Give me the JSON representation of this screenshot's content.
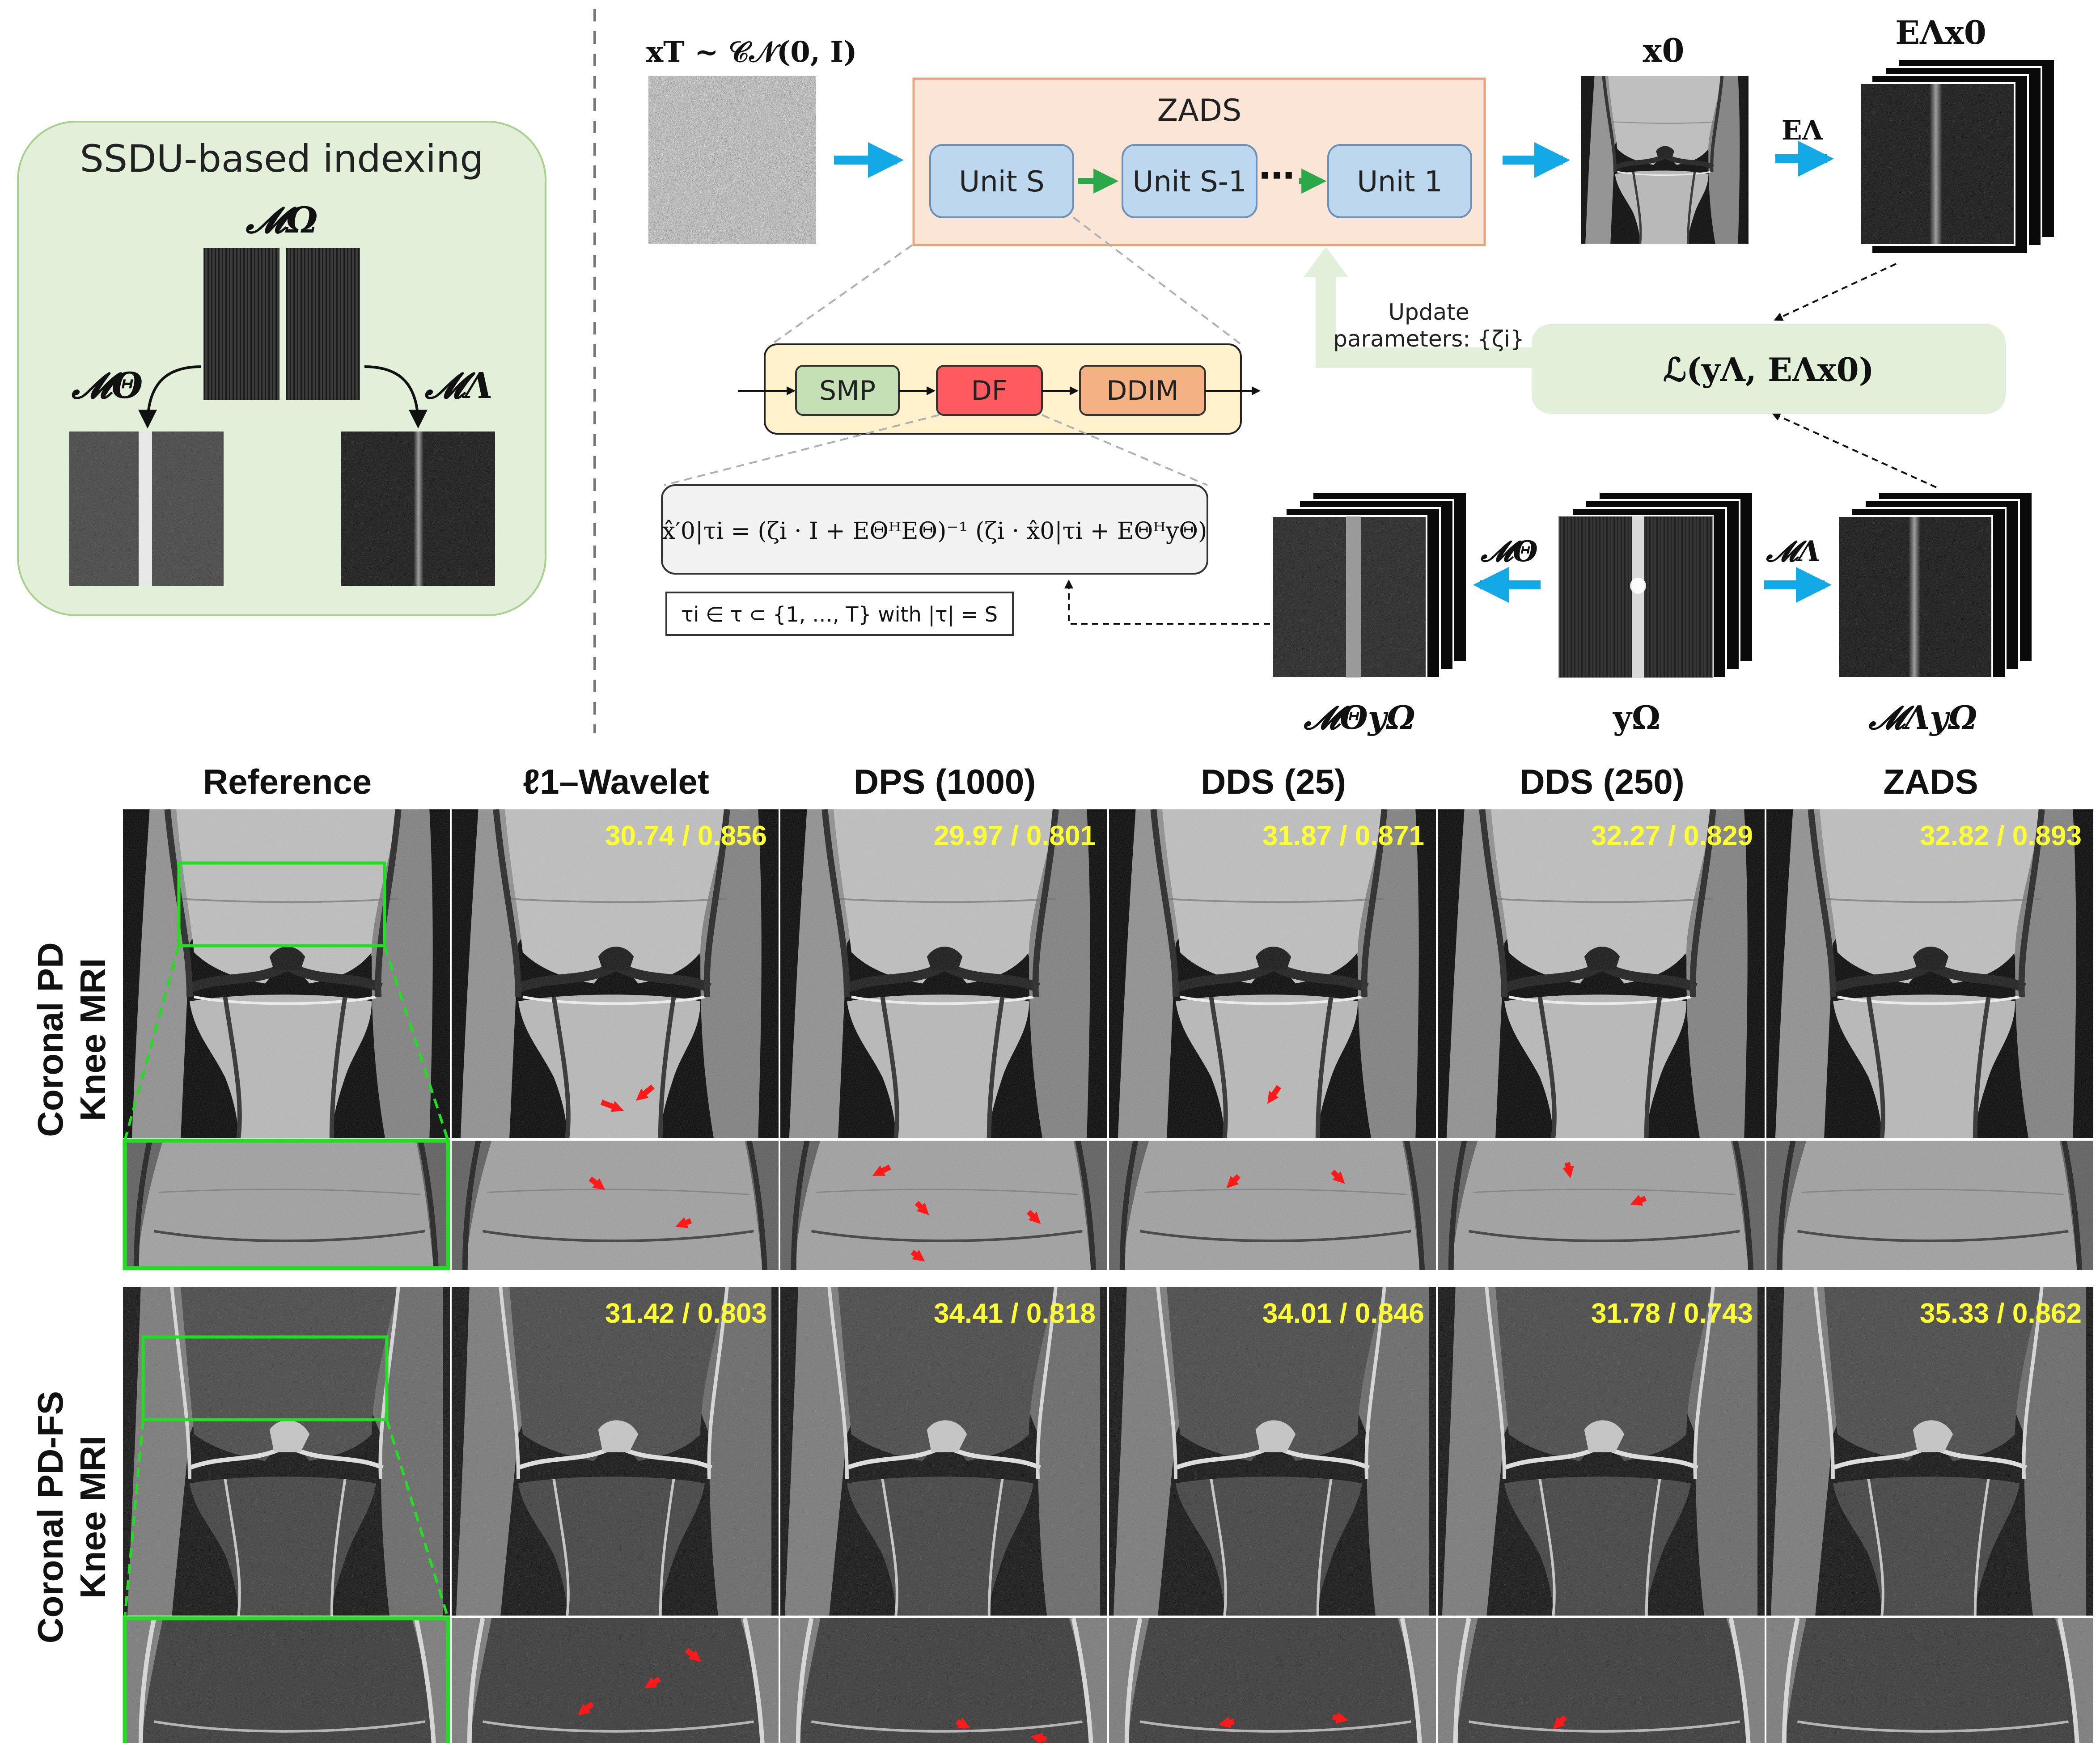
{
  "ssdu": {
    "title": "SSDU-based indexing",
    "mask_omega": "𝓜Ω",
    "mask_theta": "𝓜Θ",
    "mask_lambda": "𝓜Λ"
  },
  "pipeline": {
    "noise_label": "xT ~ 𝒞𝒩(0, I)",
    "zads_title": "ZADS",
    "units": [
      "Unit S",
      "Unit S-1",
      "Unit 1"
    ],
    "ellipsis": "⋯",
    "x0_label": "x0",
    "e_lambda_label": "EΛ",
    "e_lambda_x0_label": "EΛx0",
    "loss_label": "ℒ(yΛ, EΛx0)",
    "update_line1": "Update",
    "update_line2": "parameters: {ζi}",
    "blocks": [
      "SMP",
      "DF",
      "DDIM"
    ],
    "formula": "x̂′0|τi = (ζi · I + EΘᴴEΘ)⁻¹ (ζi · x̂0|τi + EΘᴴyΘ)",
    "tau_note": "τi ∈ τ ⊂ {1, …, T} with |τ| = S",
    "m_theta_y_label": "𝓜ΘyΩ",
    "y_omega_label": "yΩ",
    "m_lambda_y_label": "𝓜ΛyΩ",
    "arrow_m_theta": "𝓜Θ",
    "arrow_m_lambda": "𝓜Λ"
  },
  "results": {
    "columns": [
      "Reference",
      "ℓ1–Wavelet",
      "DPS (1000)",
      "DDS (25)",
      "DDS (250)",
      "ZADS"
    ],
    "rows": [
      {
        "label_line1": "Coronal PD",
        "label_line2": "Knee MRI",
        "metrics": [
          "30.74 / 0.856",
          "29.97 / 0.801",
          "31.87 / 0.871",
          "32.27 / 0.829",
          "32.82 / 0.893"
        ]
      },
      {
        "label_line1": "Coronal PD-FS",
        "label_line2": "Knee MRI",
        "metrics": [
          "31.42 / 0.803",
          "34.41 / 0.818",
          "34.01 / 0.846",
          "31.78 / 0.743",
          "35.33 / 0.862"
        ]
      }
    ]
  },
  "colors": {
    "panel_green": "#e2efd9",
    "panel_green_border": "#a9d18e",
    "zads_fill": "#fbe5d6",
    "zads_border": "#e4a57e",
    "unit_fill": "#bdd7ee",
    "unit_border": "#6b8fb5",
    "blue_arrow": "#12a9e6",
    "green_arrow": "#2aa84a",
    "smp_fill": "#c5e0b4",
    "df_fill": "#ff5a5f",
    "ddim_fill": "#f4b183",
    "strip_fill": "#fff2cc",
    "metric_yellow": "#ffff33",
    "roi_green": "#22dd22",
    "red_arrow": "#ff1a1a"
  }
}
